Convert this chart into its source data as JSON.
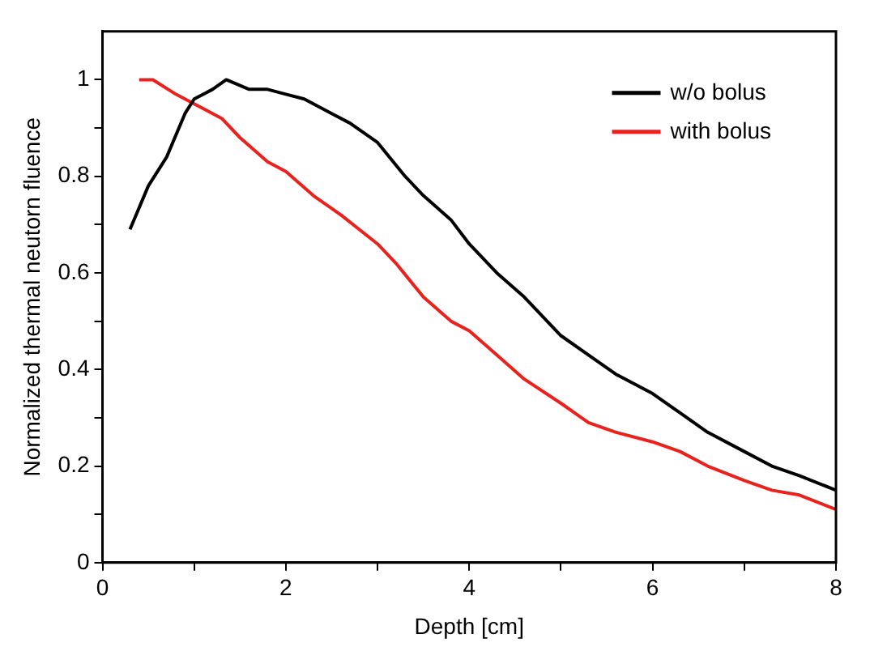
{
  "chart_data": {
    "type": "line",
    "xlabel": "Depth [cm]",
    "ylabel": "Normalized thermal neutorn fluence",
    "xlim": [
      0,
      8
    ],
    "xticks": [
      0,
      {
        "value": 1,
        "label": null
      },
      2,
      {
        "value": 3,
        "label": null
      },
      4,
      {
        "value": 5,
        "label": null
      },
      6,
      {
        "value": 7,
        "label": null
      },
      8
    ],
    "ylim": [
      0,
      1.1
    ],
    "yticks": [
      0,
      {
        "value": 0.1,
        "label": null
      },
      0.2,
      {
        "value": 0.3,
        "label": null
      },
      0.4,
      {
        "value": 0.5,
        "label": null
      },
      0.6,
      {
        "value": 0.7,
        "label": null
      },
      0.8,
      {
        "value": 0.9,
        "label": null
      },
      1
    ],
    "grid": false,
    "legend": "top right",
    "marker": "none",
    "line_style": "solid",
    "series": [
      {
        "name": "w/o bolus",
        "color": "#000000",
        "x": [
          0.3,
          0.5,
          0.7,
          0.9,
          1.0,
          1.2,
          1.35,
          1.6,
          1.8,
          2.0,
          2.2,
          2.5,
          2.7,
          3.0,
          3.3,
          3.5,
          3.8,
          4.0,
          4.3,
          4.6,
          5.0,
          5.3,
          5.6,
          6.0,
          6.3,
          6.6,
          7.0,
          7.3,
          7.6,
          8.0
        ],
        "values": [
          0.69,
          0.78,
          0.84,
          0.93,
          0.96,
          0.98,
          1.0,
          0.98,
          0.98,
          0.97,
          0.96,
          0.93,
          0.91,
          0.87,
          0.8,
          0.76,
          0.71,
          0.66,
          0.6,
          0.55,
          0.47,
          0.43,
          0.39,
          0.35,
          0.31,
          0.27,
          0.23,
          0.2,
          0.18,
          0.15
        ]
      },
      {
        "name": "with bolus",
        "color": "#e8221c",
        "x": [
          0.4,
          0.55,
          0.8,
          1.0,
          1.3,
          1.5,
          1.8,
          2.0,
          2.3,
          2.6,
          3.0,
          3.2,
          3.5,
          3.8,
          4.0,
          4.3,
          4.6,
          5.0,
          5.3,
          5.6,
          6.0,
          6.3,
          6.6,
          7.0,
          7.3,
          7.6,
          8.0
        ],
        "values": [
          1.0,
          1.0,
          0.97,
          0.95,
          0.92,
          0.88,
          0.83,
          0.81,
          0.76,
          0.72,
          0.66,
          0.62,
          0.55,
          0.5,
          0.48,
          0.43,
          0.38,
          0.33,
          0.29,
          0.27,
          0.25,
          0.23,
          0.2,
          0.17,
          0.15,
          0.14,
          0.11
        ]
      }
    ]
  }
}
